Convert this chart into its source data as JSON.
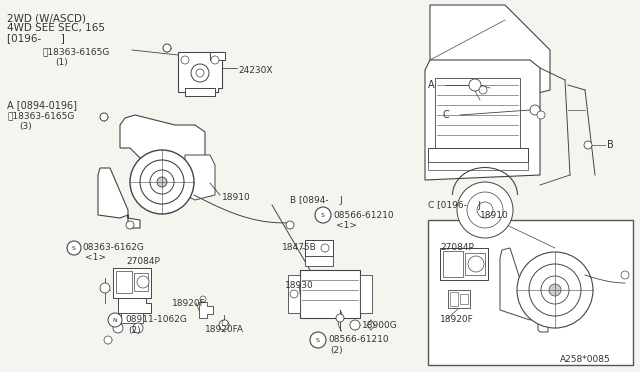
{
  "bg_color": "#f5f5f0",
  "line_color": "#444444",
  "text_color": "#333333",
  "part_number_stamp": "A258*0085",
  "header_lines": [
    "2WD (W/ASCD)",
    "4WD SEE SEC, 165",
    "[0196-      ]"
  ],
  "fig_w": 6.4,
  "fig_h": 3.72,
  "dpi": 100
}
